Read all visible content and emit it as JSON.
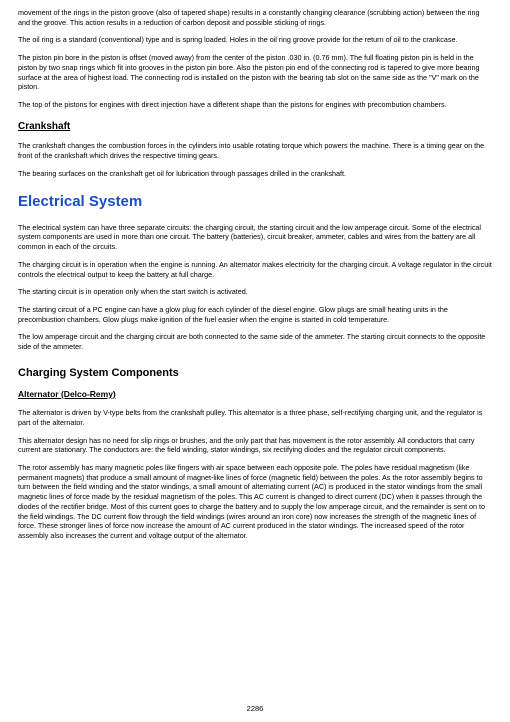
{
  "paragraphs": {
    "p1": "movement of the rings in the piston groove (also of tapered shape) results in a constantly changing clearance (scrubbing action) between the ring and the groove. This action results in a reduction of carbon deposit and possible sticking of rings.",
    "p2": "The oil ring is a standard (conventional) type and is spring loaded. Holes in the oil ring groove provide for the return of oil to the crankcase.",
    "p3": "The piston pin bore in the piston is offset (moved away) from the center of the piston .030 in. (0.76 mm). The full floating piston pin is held in the piston by two snap rings which fit into grooves in the piston pin bore. Also the piston pin end of the connecting rod is tapered to give more bearing surface at the area of highest load. The connecting rod is installed on the piston with the bearing tab slot on the same side as the \"V\" mark on the piston.",
    "p4": "The top of the pistons for engines with direct injection have a different shape than the pistons for engines with precombution chambers.",
    "h_crank": "Crankshaft",
    "p5": "The crankshaft changes the combustion forces in the cylinders into usable rotating torque which powers the machine. There is a timing gear on the front of the crankshaft which drives the respective timing gears.",
    "p6": "The bearing surfaces on the crankshaft get oil for lubrication through passages drilled in the crankshaft.",
    "h_elec": "Electrical System",
    "p7": "The electrical system can have three separate circuits: the charging circuit, the starting circuit and the low amperage circuit. Some of the electrical system components are used in more than one circuit. The battery (batteries), circuit breaker, ammeter, cables and wires from the battery are all common in each of the circuits.",
    "p8": "The charging circuit is in operation when the engine is running. An alternator makes electricity for the charging circuit. A voltage regulator in the circuit controls the electrical output to keep the battery at full charge.",
    "p9": "The starting circuit is in operation only when the start switch is activated.",
    "p10": "The starting circuit of a PC engine can have a glow plug for each cylinder of the diesel engine. Glow plugs are small heating units in the precombustion chambers. Glow plugs make ignition of the fuel easier when the engine is started in cold temperature.",
    "p11": "The low amperage circuit and the charging circuit are both connected to the same side of the ammeter. The starting circuit connects to the opposite side of the ammeter.",
    "h_charge": "Charging System Components",
    "h_alt": "Alternator (Delco-Remy)",
    "p12": "The alternator is driven by V-type belts from the crankshaft pulley. This alternator is a three phase, self-rectifying charging unit, and the regulator is part of the alternator.",
    "p13": "This alternator design has no need for slip rings or brushes, and the only part that has movement is the rotor assembly. All conductors that carry current are stationary. The conductors are: the field winding, stator windings, six rectifying diodes and the regulator circuit components.",
    "p14": "The rotor assembly has many magnetic poles like fingers with air space between each opposite pole. The poles have residual magnetism (like permanent magnets) that produce a small amount of magnet-like lines of force (magnetic field) between the poles. As the rotor assembly begins to turn between the field winding and the stator windings, a small amount of alternating current (AC) is produced in the stator windings from the small magnetic lines of force made by the residual magnetism of the poles. This AC current is changed to direct current (DC) when it passes through the diodes of the rectifier bridge. Most of this current goes to charge the battery and to supply the low amperage circuit, and the remainder is sent on to the field windings. The DC current flow through the field windings (wires around an iron core) now increases the strength of the magnetic lines of force. These stronger lines of force now increase the amount of AC current produced in the stator windings. The increased speed of the rotor assembly also increases the current and voltage output of the alternator."
  },
  "page_number": "2286"
}
